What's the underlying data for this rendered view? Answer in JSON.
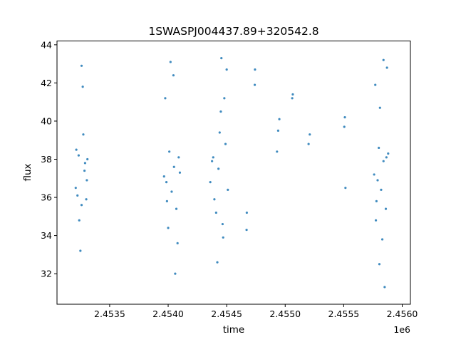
{
  "chart_data": {
    "type": "scatter",
    "title": "1SWASPJ004437.89+320542.8",
    "xlabel": "time",
    "ylabel": "flux",
    "x_offset_label": "1e6",
    "xlim": [
      2453050,
      2456070
    ],
    "ylim": [
      30.4,
      44.2
    ],
    "x_ticks": [
      2453500,
      2454000,
      2454500,
      2455000,
      2455500,
      2456000
    ],
    "x_tick_labels": [
      "2.4535",
      "2.4540",
      "2.4545",
      "2.4550",
      "2.4555",
      "2.4560"
    ],
    "y_ticks": [
      32,
      34,
      36,
      38,
      40,
      42,
      44
    ],
    "y_tick_labels": [
      "32",
      "34",
      "36",
      "38",
      "40",
      "42",
      "44"
    ],
    "grid": false,
    "marker_color": "#1f77b4",
    "series": [
      {
        "x": [
          2453210,
          2453235,
          2453260,
          2453285,
          2453305,
          2453260,
          2453240,
          2453275,
          2453215,
          2453300,
          2453250,
          2453270,
          2453290,
          2453225,
          2453310,
          2453965,
          2453990,
          2454010,
          2454030,
          2454050,
          2454070,
          2454090,
          2454045,
          2453975,
          2454080,
          2454000,
          2454100,
          2454020,
          2454060,
          2453985,
          2454360,
          2454385,
          2454410,
          2454430,
          2454450,
          2454470,
          2454490,
          2454510,
          2454395,
          2454455,
          2454420,
          2454480,
          2454375,
          2454440,
          2454500,
          2454465,
          2454670,
          2454672,
          2454740,
          2454742,
          2454930,
          2454940,
          2454950,
          2455060,
          2455065,
          2455200,
          2455210,
          2455505,
          2455510,
          2455515,
          2455760,
          2455780,
          2455800,
          2455820,
          2455840,
          2455860,
          2455880,
          2455770,
          2455830,
          2455870,
          2455790,
          2455850,
          2455810,
          2455775,
          2455865,
          2455805,
          2455840
        ],
        "y": [
          36.5,
          38.2,
          35.6,
          37.4,
          36.9,
          42.9,
          34.8,
          39.3,
          38.5,
          35.9,
          33.2,
          41.8,
          37.8,
          36.1,
          38.0,
          37.1,
          35.8,
          38.4,
          36.3,
          37.6,
          35.4,
          38.1,
          42.4,
          41.2,
          33.6,
          34.4,
          37.3,
          43.1,
          32.0,
          36.8,
          36.8,
          38.1,
          35.2,
          37.5,
          40.5,
          33.9,
          38.8,
          36.4,
          35.9,
          43.3,
          32.6,
          41.2,
          37.9,
          39.4,
          42.7,
          34.6,
          34.3,
          35.2,
          41.9,
          42.7,
          38.4,
          39.5,
          40.1,
          41.2,
          41.4,
          38.8,
          39.3,
          39.7,
          40.2,
          36.5,
          37.2,
          35.8,
          38.6,
          36.4,
          37.9,
          35.4,
          38.3,
          41.9,
          33.8,
          42.8,
          36.9,
          31.3,
          40.7,
          34.8,
          38.1,
          32.5,
          43.2
        ]
      }
    ]
  }
}
